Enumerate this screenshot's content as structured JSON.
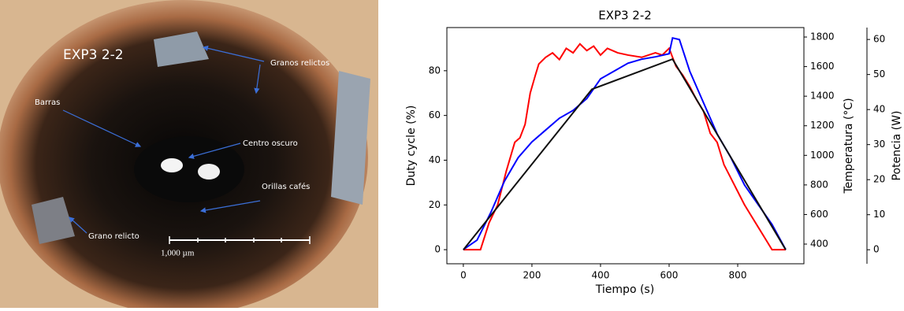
{
  "image": {
    "labels": [
      "EXP3 2-2",
      "Granos relictos",
      "Barras",
      "Centro oscuro",
      "Orillas cafés",
      "Grano relicto"
    ],
    "scale_bar": "1,000 µm"
  },
  "chart_data": {
    "type": "line",
    "title": "EXP3 2-2",
    "x_label": "Tiempo (s)",
    "y_label": "Duty cycle (%)",
    "y2_label": "Temperatura (°C)",
    "y3_label": "Potencia (W)",
    "xlim": [
      -48,
      993
    ],
    "xticks": [
      0,
      200,
      400,
      600,
      800
    ],
    "ylim": [
      -6.3,
      99.3
    ],
    "yticks": [
      0,
      20,
      40,
      60,
      80
    ],
    "y2lim": [
      267,
      1864
    ],
    "y2ticks": [
      400,
      600,
      800,
      1000,
      1200,
      1400,
      1600,
      1800
    ],
    "y3lim": [
      -4,
      63.4
    ],
    "y3ticks": [
      0,
      10,
      20,
      30,
      40,
      50,
      60
    ],
    "series": [
      {
        "color": "#ff0000",
        "axis": "y",
        "x": [
          0,
          50,
          75,
          100,
          125,
          150,
          165,
          180,
          195,
          210,
          220,
          240,
          260,
          280,
          300,
          320,
          340,
          360,
          380,
          400,
          420,
          450,
          480,
          520,
          560,
          580,
          600,
          620,
          640,
          660,
          680,
          700,
          720,
          740,
          760,
          780,
          800,
          820,
          840,
          860,
          880,
          900,
          920,
          940
        ],
        "values": [
          0,
          0,
          12,
          20,
          35,
          48,
          50,
          56,
          70,
          78,
          83,
          86,
          88,
          85,
          90,
          88,
          92,
          89,
          91,
          87,
          90,
          88,
          87,
          86,
          88,
          87,
          90,
          82,
          78,
          73,
          67,
          62,
          52,
          48,
          38,
          32,
          26,
          20,
          15,
          10,
          5,
          0,
          0,
          0
        ]
      },
      {
        "color": "#0000ff",
        "axis": "y2",
        "x": [
          0,
          40,
          80,
          120,
          160,
          200,
          240,
          280,
          320,
          360,
          400,
          440,
          480,
          520,
          560,
          600,
          610,
          630,
          660,
          700,
          740,
          780,
          820,
          860,
          900,
          940
        ],
        "values": [
          363,
          427,
          613,
          826,
          985,
          1091,
          1171,
          1251,
          1304,
          1384,
          1517,
          1570,
          1623,
          1650,
          1666,
          1687,
          1794,
          1783,
          1570,
          1357,
          1145,
          985,
          799,
          666,
          533,
          363
        ]
      },
      {
        "color": "#111111",
        "axis": "y3",
        "x": [
          0,
          375,
          610,
          940
        ],
        "values": [
          0,
          45.8,
          54.4,
          0
        ]
      }
    ]
  }
}
